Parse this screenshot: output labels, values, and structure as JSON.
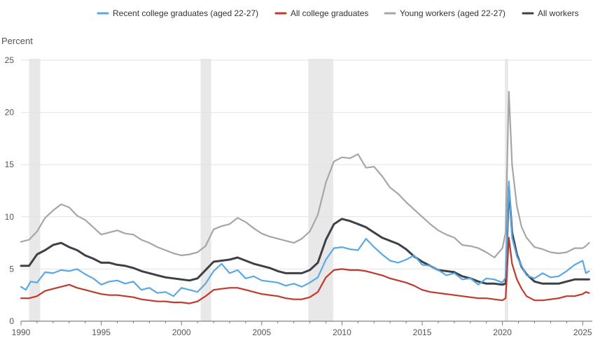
{
  "chart_data": {
    "type": "line",
    "ylabel": "Percent",
    "xlim": [
      1990,
      2025.6
    ],
    "ylim": [
      0,
      25
    ],
    "y_ticks": [
      "0",
      "5",
      "10",
      "15",
      "20",
      "25"
    ],
    "x_ticks": [
      "1990",
      "1995",
      "2000",
      "2005",
      "2010",
      "2015",
      "2020",
      "2025"
    ],
    "grid": "horizontal",
    "legend_position": "top",
    "recessions": [
      [
        1990.5,
        1991.2
      ],
      [
        2001.2,
        2001.85
      ],
      [
        2007.9,
        2009.45
      ],
      [
        2020.15,
        2020.35
      ]
    ],
    "series": [
      {
        "name": "Recent college graduates (aged 22-27)",
        "color": "#5aa9e6",
        "x": [
          1990.0,
          1990.3,
          1990.6,
          1991.0,
          1991.5,
          1992.0,
          1992.5,
          1993.0,
          1993.5,
          1994.0,
          1994.5,
          1995.0,
          1995.5,
          1996.0,
          1996.5,
          1997.0,
          1997.5,
          1998.0,
          1998.5,
          1999.0,
          1999.5,
          2000.0,
          2000.5,
          2001.0,
          2001.5,
          2002.0,
          2002.5,
          2003.0,
          2003.5,
          2004.0,
          2004.5,
          2005.0,
          2005.5,
          2006.0,
          2006.5,
          2007.0,
          2007.5,
          2008.0,
          2008.5,
          2009.0,
          2009.5,
          2010.0,
          2010.5,
          2011.0,
          2011.5,
          2012.0,
          2012.5,
          2013.0,
          2013.5,
          2014.0,
          2014.5,
          2015.0,
          2015.5,
          2016.0,
          2016.5,
          2017.0,
          2017.5,
          2018.0,
          2018.5,
          2019.0,
          2019.5,
          2020.0,
          2020.2,
          2020.4,
          2020.6,
          2020.9,
          2021.2,
          2021.5,
          2022.0,
          2022.5,
          2023.0,
          2023.5,
          2024.0,
          2024.5,
          2025.0,
          2025.2,
          2025.4
        ],
        "values": [
          3.3,
          3.0,
          3.8,
          3.7,
          4.7,
          4.6,
          4.9,
          4.8,
          5.0,
          4.5,
          4.1,
          3.5,
          3.8,
          3.9,
          3.6,
          3.8,
          3.0,
          3.2,
          2.7,
          2.8,
          2.4,
          3.2,
          3.0,
          2.8,
          3.6,
          4.8,
          5.5,
          4.6,
          4.9,
          4.1,
          4.3,
          3.9,
          3.8,
          3.7,
          3.4,
          3.6,
          3.3,
          3.7,
          4.2,
          5.9,
          7.0,
          7.1,
          6.9,
          6.8,
          7.9,
          7.1,
          6.4,
          5.8,
          5.6,
          5.9,
          6.3,
          5.4,
          5.3,
          4.9,
          4.4,
          4.6,
          4.0,
          4.1,
          3.5,
          4.1,
          4.0,
          3.7,
          4.2,
          13.4,
          8.0,
          6.2,
          5.3,
          4.4,
          4.1,
          4.6,
          4.2,
          4.3,
          4.8,
          5.4,
          5.8,
          4.6,
          4.8
        ]
      },
      {
        "name": "All college graduates",
        "color": "#c0392b",
        "x": [
          1990.0,
          1990.5,
          1991.0,
          1991.5,
          1992.0,
          1992.5,
          1993.0,
          1993.5,
          1994.0,
          1994.5,
          1995.0,
          1995.5,
          1996.0,
          1996.5,
          1997.0,
          1997.5,
          1998.0,
          1998.5,
          1999.0,
          1999.5,
          2000.0,
          2000.5,
          2001.0,
          2001.5,
          2002.0,
          2002.5,
          2003.0,
          2003.5,
          2004.0,
          2004.5,
          2005.0,
          2005.5,
          2006.0,
          2006.5,
          2007.0,
          2007.5,
          2008.0,
          2008.5,
          2009.0,
          2009.5,
          2010.0,
          2010.5,
          2011.0,
          2011.5,
          2012.0,
          2012.5,
          2013.0,
          2013.5,
          2014.0,
          2014.5,
          2015.0,
          2015.5,
          2016.0,
          2016.5,
          2017.0,
          2017.5,
          2018.0,
          2018.5,
          2019.0,
          2019.5,
          2020.0,
          2020.2,
          2020.4,
          2020.6,
          2020.9,
          2021.2,
          2021.5,
          2022.0,
          2022.5,
          2023.0,
          2023.5,
          2024.0,
          2024.5,
          2025.0,
          2025.2,
          2025.4
        ],
        "values": [
          2.2,
          2.2,
          2.4,
          2.9,
          3.1,
          3.3,
          3.5,
          3.2,
          3.0,
          2.8,
          2.6,
          2.5,
          2.5,
          2.4,
          2.3,
          2.1,
          2.0,
          1.9,
          1.9,
          1.8,
          1.8,
          1.7,
          1.9,
          2.4,
          3.0,
          3.1,
          3.2,
          3.2,
          3.0,
          2.8,
          2.6,
          2.5,
          2.4,
          2.2,
          2.1,
          2.1,
          2.3,
          2.8,
          4.2,
          4.9,
          5.0,
          4.9,
          4.9,
          4.8,
          4.6,
          4.4,
          4.1,
          3.9,
          3.7,
          3.4,
          3.0,
          2.8,
          2.7,
          2.6,
          2.5,
          2.4,
          2.3,
          2.2,
          2.2,
          2.1,
          2.0,
          2.2,
          8.0,
          5.5,
          4.0,
          3.1,
          2.4,
          2.0,
          2.0,
          2.1,
          2.2,
          2.4,
          2.4,
          2.6,
          2.8,
          2.7
        ]
      },
      {
        "name": "Young workers (aged 22-27)",
        "color": "#a6a6a6",
        "x": [
          1990.0,
          1990.5,
          1991.0,
          1991.5,
          1992.0,
          1992.5,
          1993.0,
          1993.5,
          1994.0,
          1994.5,
          1995.0,
          1995.5,
          1996.0,
          1996.5,
          1997.0,
          1997.5,
          1998.0,
          1998.5,
          1999.0,
          1999.5,
          2000.0,
          2000.5,
          2001.0,
          2001.5,
          2002.0,
          2002.5,
          2003.0,
          2003.5,
          2004.0,
          2004.5,
          2005.0,
          2005.5,
          2006.0,
          2006.5,
          2007.0,
          2007.5,
          2008.0,
          2008.5,
          2009.0,
          2009.5,
          2010.0,
          2010.5,
          2011.0,
          2011.5,
          2012.0,
          2012.5,
          2013.0,
          2013.5,
          2014.0,
          2014.5,
          2015.0,
          2015.5,
          2016.0,
          2016.5,
          2017.0,
          2017.5,
          2018.0,
          2018.5,
          2019.0,
          2019.5,
          2020.0,
          2020.2,
          2020.4,
          2020.6,
          2020.9,
          2021.2,
          2021.5,
          2022.0,
          2022.5,
          2023.0,
          2023.5,
          2024.0,
          2024.5,
          2025.0,
          2025.2,
          2025.4
        ],
        "values": [
          7.6,
          7.8,
          8.6,
          9.9,
          10.6,
          11.2,
          10.9,
          10.1,
          9.7,
          9.0,
          8.3,
          8.5,
          8.7,
          8.4,
          8.3,
          7.8,
          7.5,
          7.1,
          6.8,
          6.5,
          6.3,
          6.4,
          6.6,
          7.2,
          8.8,
          9.1,
          9.3,
          9.9,
          9.5,
          8.9,
          8.4,
          8.1,
          7.9,
          7.7,
          7.5,
          7.9,
          8.6,
          10.2,
          13.3,
          15.3,
          15.7,
          15.6,
          16.0,
          14.7,
          14.8,
          13.9,
          12.8,
          12.2,
          11.4,
          10.7,
          10.0,
          9.3,
          8.7,
          8.3,
          8.0,
          7.3,
          7.2,
          7.0,
          6.6,
          6.1,
          7.0,
          8.5,
          22.0,
          15.0,
          11.0,
          9.0,
          8.0,
          7.1,
          6.9,
          6.6,
          6.5,
          6.6,
          7.0,
          7.0,
          7.2,
          7.5
        ]
      },
      {
        "name": "All workers",
        "color": "#3d4147",
        "x": [
          1990.0,
          1990.5,
          1991.0,
          1991.5,
          1992.0,
          1992.5,
          1993.0,
          1993.5,
          1994.0,
          1994.5,
          1995.0,
          1995.5,
          1996.0,
          1996.5,
          1997.0,
          1997.5,
          1998.0,
          1998.5,
          1999.0,
          1999.5,
          2000.0,
          2000.5,
          2001.0,
          2001.5,
          2002.0,
          2002.5,
          2003.0,
          2003.5,
          2004.0,
          2004.5,
          2005.0,
          2005.5,
          2006.0,
          2006.5,
          2007.0,
          2007.5,
          2008.0,
          2008.5,
          2009.0,
          2009.5,
          2010.0,
          2010.5,
          2011.0,
          2011.5,
          2012.0,
          2012.5,
          2013.0,
          2013.5,
          2014.0,
          2014.5,
          2015.0,
          2015.5,
          2016.0,
          2016.5,
          2017.0,
          2017.5,
          2018.0,
          2018.5,
          2019.0,
          2019.5,
          2020.0,
          2020.2,
          2020.4,
          2020.6,
          2020.9,
          2021.2,
          2021.5,
          2022.0,
          2022.5,
          2023.0,
          2023.5,
          2024.0,
          2024.5,
          2025.0,
          2025.2,
          2025.4
        ],
        "values": [
          5.3,
          5.3,
          6.4,
          6.8,
          7.3,
          7.5,
          7.1,
          6.8,
          6.3,
          6.0,
          5.6,
          5.6,
          5.4,
          5.3,
          5.1,
          4.8,
          4.6,
          4.4,
          4.2,
          4.1,
          4.0,
          3.9,
          4.1,
          4.9,
          5.7,
          5.8,
          5.9,
          6.1,
          5.8,
          5.5,
          5.3,
          5.1,
          4.8,
          4.6,
          4.6,
          4.6,
          4.9,
          5.6,
          7.8,
          9.3,
          9.8,
          9.6,
          9.3,
          9.0,
          8.5,
          8.0,
          7.7,
          7.4,
          6.9,
          6.2,
          5.7,
          5.3,
          4.9,
          4.8,
          4.7,
          4.3,
          4.1,
          3.8,
          3.6,
          3.6,
          3.5,
          3.6,
          12.9,
          8.5,
          6.4,
          5.2,
          4.5,
          3.8,
          3.6,
          3.6,
          3.6,
          3.8,
          4.0,
          4.0,
          4.0,
          4.0
        ]
      }
    ]
  }
}
